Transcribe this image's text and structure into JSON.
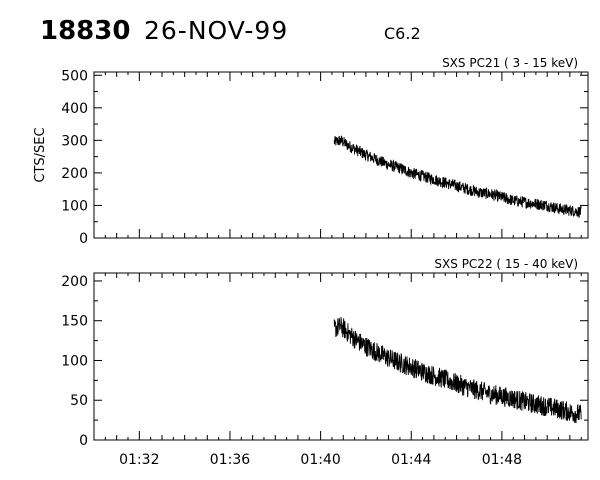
{
  "header": {
    "event_id": "18830",
    "date": "26-NOV-99",
    "flare_class": "C6.2"
  },
  "chart_data": [
    {
      "type": "line",
      "title": "SXS PC21  (  3 - 15 keV)",
      "ylabel": "CTS/SEC",
      "xlabel": "",
      "x_ticks": [
        "01:32",
        "01:36",
        "01:40",
        "01:44",
        "01:48"
      ],
      "xlim_minutes": [
        30.0,
        51.8
      ],
      "x_tick_minutes": [
        32,
        36,
        40,
        44,
        48
      ],
      "ylim": [
        0,
        510
      ],
      "y_ticks": [
        0,
        100,
        200,
        300,
        400,
        500
      ],
      "series": [
        {
          "t_minutes": [
            40.6,
            40.9,
            41.2,
            41.6,
            42.0,
            42.5,
            43.0,
            43.5,
            44.0,
            44.5,
            45.0,
            45.5,
            46.0,
            46.5,
            47.0,
            47.5,
            48.0,
            48.5,
            49.0,
            49.5,
            50.0,
            50.5,
            51.0,
            51.5
          ],
          "values": [
            295,
            300,
            285,
            270,
            255,
            240,
            225,
            215,
            200,
            190,
            180,
            170,
            160,
            150,
            140,
            135,
            125,
            115,
            110,
            105,
            100,
            90,
            85,
            80
          ]
        }
      ]
    },
    {
      "type": "line",
      "title": "SXS PC22  ( 15 - 40 keV)",
      "ylabel": "",
      "xlabel": "",
      "x_ticks": [
        "01:32",
        "01:36",
        "01:40",
        "01:44",
        "01:48"
      ],
      "xlim_minutes": [
        30.0,
        51.8
      ],
      "x_tick_minutes": [
        32,
        36,
        40,
        44,
        48
      ],
      "ylim": [
        0,
        210
      ],
      "y_ticks": [
        0,
        50,
        100,
        150,
        200
      ],
      "series": [
        {
          "t_minutes": [
            40.6,
            40.9,
            41.2,
            41.6,
            42.0,
            42.5,
            43.0,
            43.5,
            44.0,
            44.5,
            45.0,
            45.5,
            46.0,
            46.5,
            47.0,
            47.5,
            48.0,
            48.5,
            49.0,
            49.5,
            50.0,
            50.5,
            51.0,
            51.5
          ],
          "values": [
            140,
            143,
            135,
            125,
            118,
            110,
            103,
            97,
            92,
            86,
            81,
            76,
            71,
            66,
            62,
            58,
            55,
            52,
            48,
            45,
            42,
            39,
            35,
            32
          ]
        }
      ]
    }
  ]
}
